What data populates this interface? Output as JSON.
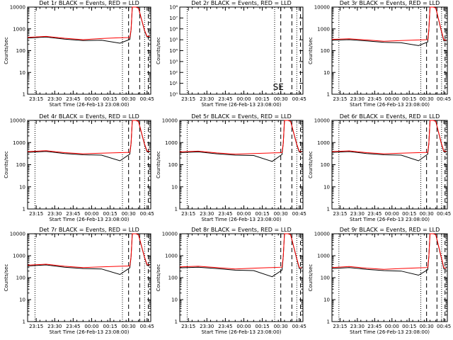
{
  "chart_data": [
    {
      "type": "line",
      "title": "Det 1r BLACK = Events, RED = LLD",
      "ylabel": "Counts/sec",
      "xlabel": "Start Time (26-Feb-13 23:08:00)",
      "yscale": "log",
      "ylim": [
        1,
        10000
      ],
      "y_tick_labels": [
        "1",
        "10",
        "100",
        "1000",
        "10000"
      ],
      "x_tick_labels": [
        "23:15",
        "23:30",
        "23:45",
        "00:00",
        "00:15",
        "00:30",
        "00:45"
      ],
      "x_minutes": [
        0,
        15,
        30,
        45,
        60,
        75,
        83,
        84,
        85,
        88,
        90,
        95,
        97,
        99
      ],
      "series": [
        {
          "color": "#000000",
          "values": [
            380,
            420,
            340,
            290,
            300,
            220,
            330,
            900,
            10000,
            10000,
            9000,
            800,
            420,
            420
          ]
        },
        {
          "color": "#ff0000",
          "values": [
            410,
            450,
            370,
            320,
            360,
            390,
            400,
            950,
            10000,
            10000,
            9000,
            850,
            450,
            450
          ]
        }
      ],
      "markers": {
        "dotted": [
          6,
          77,
          95
        ],
        "dashed": [
          82,
          91,
          98
        ]
      },
      "annotation": ""
    },
    {
      "type": "line",
      "title": "Det 2r BLACK = Events, RED = LLD",
      "ylabel": "Counts/sec",
      "xlabel": "Start Time (26-Feb-13 23:08:00)",
      "yscale": "log",
      "ylim": [
        1,
        100000000
      ],
      "y_tick_labels": [
        "10⁰",
        "10¹",
        "10²",
        "10³",
        "10⁴",
        "10⁵",
        "10⁶",
        "10⁷",
        "10⁸"
      ],
      "x_tick_labels": [
        "23:15",
        "23:30",
        "23:45",
        "00:00",
        "00:15",
        "00:30",
        "00:45"
      ],
      "x_minutes": [],
      "series": [],
      "markers": {
        "dotted": [
          6,
          77,
          95
        ],
        "dashed": [
          82,
          91,
          98
        ]
      },
      "annotation": "SE"
    },
    {
      "type": "line",
      "title": "Det 3r BLACK = Events, RED = LLD",
      "ylabel": "Counts/sec",
      "xlabel": "Start Time (26-Feb-13 23:08:00)",
      "yscale": "log",
      "ylim": [
        1,
        10000
      ],
      "y_tick_labels": [
        "1",
        "10",
        "100",
        "1000",
        "10000"
      ],
      "x_tick_labels": [
        "23:15",
        "23:30",
        "23:45",
        "00:00",
        "00:15",
        "00:30",
        "00:45"
      ],
      "x_minutes": [
        0,
        15,
        30,
        45,
        60,
        75,
        83,
        84,
        85,
        88,
        90,
        95,
        97,
        99
      ],
      "series": [
        {
          "color": "#000000",
          "values": [
            300,
            320,
            280,
            240,
            230,
            170,
            250,
            900,
            10000,
            10000,
            9000,
            700,
            280,
            280
          ]
        },
        {
          "color": "#ff0000",
          "values": [
            330,
            350,
            310,
            270,
            290,
            310,
            320,
            950,
            10000,
            10000,
            9000,
            750,
            310,
            300
          ]
        }
      ],
      "markers": {
        "dotted": [
          6,
          77,
          95
        ],
        "dashed": [
          82,
          91,
          98
        ]
      },
      "annotation": ""
    },
    {
      "type": "line",
      "title": "Det 4r BLACK = Events, RED = LLD",
      "ylabel": "Counts/sec",
      "xlabel": "Start Time (26-Feb-13 23:08:00)",
      "yscale": "log",
      "ylim": [
        1,
        10000
      ],
      "y_tick_labels": [
        "1",
        "10",
        "100",
        "1000",
        "10000"
      ],
      "x_tick_labels": [
        "23:15",
        "23:30",
        "23:45",
        "00:00",
        "00:15",
        "00:30",
        "00:45"
      ],
      "x_minutes": [
        0,
        15,
        30,
        45,
        60,
        75,
        83,
        84,
        85,
        88,
        90,
        95,
        97,
        99
      ],
      "series": [
        {
          "color": "#000000",
          "values": [
            360,
            400,
            320,
            280,
            270,
            150,
            300,
            900,
            10000,
            10000,
            9000,
            800,
            380,
            380
          ]
        },
        {
          "color": "#ff0000",
          "values": [
            390,
            430,
            350,
            310,
            330,
            350,
            360,
            950,
            10000,
            10000,
            9000,
            850,
            410,
            400
          ]
        }
      ],
      "markers": {
        "dotted": [
          6,
          77,
          95
        ],
        "dashed": [
          82,
          91,
          98
        ]
      },
      "annotation": ""
    },
    {
      "type": "line",
      "title": "Det 5r BLACK = Events, RED = LLD",
      "ylabel": "Counts/sec",
      "xlabel": "Start Time (26-Feb-13 23:08:00)",
      "yscale": "log",
      "ylim": [
        1,
        10000
      ],
      "y_tick_labels": [
        "1",
        "10",
        "100",
        "1000",
        "10000"
      ],
      "x_tick_labels": [
        "23:15",
        "23:30",
        "23:45",
        "00:00",
        "00:15",
        "00:30",
        "00:45"
      ],
      "x_minutes": [
        0,
        15,
        30,
        45,
        60,
        75,
        83,
        84,
        85,
        88,
        90,
        95,
        97,
        99
      ],
      "series": [
        {
          "color": "#000000",
          "values": [
            350,
            380,
            310,
            270,
            260,
            140,
            290,
            900,
            10000,
            10000,
            9000,
            800,
            370,
            370
          ]
        },
        {
          "color": "#ff0000",
          "values": [
            380,
            410,
            340,
            300,
            320,
            340,
            350,
            950,
            10000,
            10000,
            9000,
            850,
            400,
            390
          ]
        }
      ],
      "markers": {
        "dotted": [
          6,
          77,
          95
        ],
        "dashed": [
          82,
          91,
          98
        ]
      },
      "annotation": ""
    },
    {
      "type": "line",
      "title": "Det 6r BLACK = Events, RED = LLD",
      "ylabel": "Counts/sec",
      "xlabel": "Start Time (26-Feb-13 23:08:00)",
      "yscale": "log",
      "ylim": [
        1,
        10000
      ],
      "y_tick_labels": [
        "1",
        "10",
        "100",
        "1000",
        "10000"
      ],
      "x_tick_labels": [
        "23:15",
        "23:30",
        "23:45",
        "00:00",
        "00:15",
        "00:30",
        "00:45"
      ],
      "x_minutes": [
        0,
        15,
        30,
        45,
        60,
        75,
        83,
        84,
        85,
        88,
        90,
        95,
        97,
        99
      ],
      "series": [
        {
          "color": "#000000",
          "values": [
            360,
            390,
            320,
            280,
            270,
            150,
            300,
            900,
            10000,
            10000,
            9000,
            800,
            380,
            380
          ]
        },
        {
          "color": "#ff0000",
          "values": [
            390,
            420,
            350,
            310,
            330,
            350,
            360,
            950,
            10000,
            10000,
            9000,
            850,
            410,
            400
          ]
        }
      ],
      "markers": {
        "dotted": [
          6,
          77,
          95
        ],
        "dashed": [
          82,
          91,
          98
        ]
      },
      "annotation": ""
    },
    {
      "type": "line",
      "title": "Det 7r BLACK = Events, RED = LLD",
      "ylabel": "Counts/sec",
      "xlabel": "Start Time (26-Feb-13 23:08:00)",
      "yscale": "log",
      "ylim": [
        1,
        10000
      ],
      "y_tick_labels": [
        "1",
        "10",
        "100",
        "1000",
        "10000"
      ],
      "x_tick_labels": [
        "23:15",
        "23:30",
        "23:45",
        "00:00",
        "00:15",
        "00:30",
        "00:45"
      ],
      "x_minutes": [
        0,
        15,
        30,
        45,
        60,
        75,
        83,
        84,
        85,
        88,
        90,
        95,
        97,
        99
      ],
      "series": [
        {
          "color": "#000000",
          "values": [
            340,
            380,
            300,
            260,
            250,
            140,
            280,
            900,
            10000,
            10000,
            9000,
            800,
            360,
            360
          ]
        },
        {
          "color": "#ff0000",
          "values": [
            370,
            410,
            330,
            290,
            310,
            330,
            340,
            950,
            10000,
            10000,
            9000,
            850,
            390,
            380
          ]
        }
      ],
      "markers": {
        "dotted": [
          6,
          77,
          95
        ],
        "dashed": [
          82,
          91,
          98
        ]
      },
      "annotation": ""
    },
    {
      "type": "line",
      "title": "Det 8r BLACK = Events, RED = LLD",
      "ylabel": "Counts/sec",
      "xlabel": "Start Time (26-Feb-13 23:08:00)",
      "yscale": "log",
      "ylim": [
        1,
        10000
      ],
      "y_tick_labels": [
        "1",
        "10",
        "100",
        "1000",
        "10000"
      ],
      "x_tick_labels": [
        "23:15",
        "23:30",
        "23:45",
        "00:00",
        "00:15",
        "00:30",
        "00:45"
      ],
      "x_minutes": [
        0,
        15,
        30,
        45,
        60,
        75,
        83,
        84,
        85,
        88,
        90,
        95,
        97,
        99
      ],
      "series": [
        {
          "color": "#000000",
          "values": [
            280,
            300,
            260,
            220,
            210,
            110,
            220,
            900,
            10000,
            10000,
            9000,
            700,
            260,
            250
          ]
        },
        {
          "color": "#ff0000",
          "values": [
            310,
            330,
            290,
            250,
            270,
            290,
            300,
            950,
            10000,
            10000,
            9000,
            750,
            290,
            280
          ]
        }
      ],
      "markers": {
        "dotted": [
          6,
          77,
          95
        ],
        "dashed": [
          82,
          91,
          98
        ]
      },
      "annotation": ""
    },
    {
      "type": "line",
      "title": "Det 9r BLACK = Events, RED = LLD",
      "ylabel": "Counts/sec",
      "xlabel": "Start Time (26-Feb-13 23:08:00)",
      "yscale": "log",
      "ylim": [
        1,
        10000
      ],
      "y_tick_labels": [
        "1",
        "10",
        "100",
        "1000",
        "10000"
      ],
      "x_tick_labels": [
        "23:15",
        "23:30",
        "23:45",
        "00:00",
        "00:15",
        "00:30",
        "00:45"
      ],
      "x_minutes": [
        0,
        15,
        30,
        45,
        60,
        75,
        83,
        84,
        85,
        88,
        90,
        95,
        97,
        99
      ],
      "series": [
        {
          "color": "#000000",
          "values": [
            260,
            290,
            240,
            210,
            200,
            130,
            230,
            900,
            10000,
            10000,
            9000,
            700,
            250,
            240
          ]
        },
        {
          "color": "#ff0000",
          "values": [
            290,
            320,
            270,
            240,
            260,
            280,
            290,
            950,
            10000,
            10000,
            9000,
            750,
            280,
            270
          ]
        }
      ],
      "markers": {
        "dotted": [
          6,
          77,
          95
        ],
        "dashed": [
          82,
          91,
          98
        ]
      },
      "annotation": ""
    }
  ]
}
